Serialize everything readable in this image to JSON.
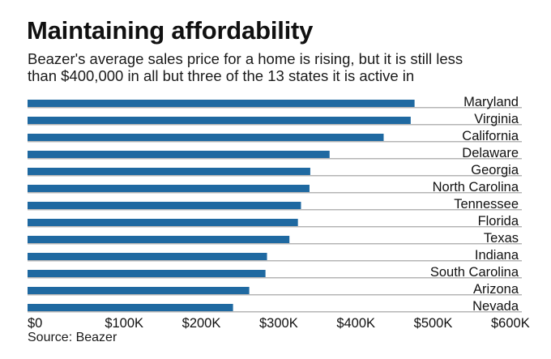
{
  "header": {
    "title": "Maintaining affordability",
    "subtitle_lines": [
      "Beazer's average sales price for a home is rising, but it is still less",
      "than $400,000 in all but three of the 13 states it is active in"
    ]
  },
  "footer": {
    "source": "Source: Beazer"
  },
  "colors": {
    "bar": "#1f69a1",
    "gridline": "#b5b5b5",
    "text": "#111111"
  },
  "chart_data": {
    "type": "bar",
    "orientation": "horizontal",
    "title": "Maintaining affordability",
    "subtitle": "Beazer's average sales price for a home is rising, but it is still less than $400,000 in all but three of the 13 states it is active in",
    "xlabel": "",
    "ylabel": "",
    "categories": [
      "Maryland",
      "Virginia",
      "California",
      "Delaware",
      "Georgia",
      "North Carolina",
      "Tennessee",
      "Florida",
      "Texas",
      "Indiana",
      "South Carolina",
      "Arizona",
      "Nevada"
    ],
    "values": [
      501000,
      496000,
      461000,
      391000,
      366000,
      365000,
      354000,
      350000,
      339000,
      310000,
      308000,
      287000,
      266000
    ],
    "xlim": [
      0,
      600000
    ],
    "ticks": [
      0,
      100000,
      200000,
      300000,
      400000,
      500000,
      600000
    ],
    "tick_labels": [
      "$0",
      "$100K",
      "$200K",
      "$300K",
      "$400K",
      "$500K",
      "$600K"
    ],
    "grid": false,
    "legend": "none",
    "category_label_placement": "right, above each bar's baseline",
    "source": "Source: Beazer"
  }
}
